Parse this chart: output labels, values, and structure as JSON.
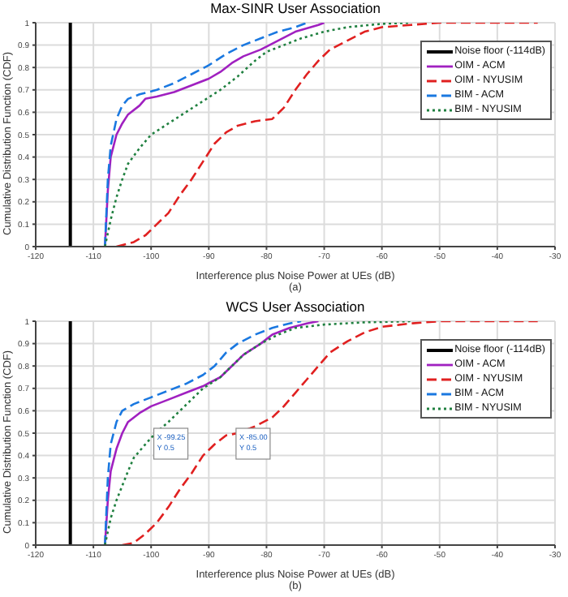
{
  "chart_data": [
    {
      "type": "line",
      "title": "Max-SINR User Association",
      "xlabel": "Interference plus Noise Power at UEs (dB)",
      "ylabel": "Cumulative Distribution Function (CDF)",
      "annotations": [
        "(a)"
      ],
      "xlim": [
        -120,
        -30
      ],
      "xticks": [
        -120,
        -110,
        -100,
        -90,
        -80,
        -70,
        -60,
        -50,
        -40,
        -30
      ],
      "ylim": [
        0,
        1
      ],
      "yticks": [
        0,
        0.1,
        0.2,
        0.3,
        0.4,
        0.5,
        0.6,
        0.7,
        0.8,
        0.9,
        1
      ],
      "grid": true,
      "legend": "top right",
      "series": [
        {
          "name": "Noise floor (-114dB)",
          "color": "#000000",
          "line_style": "solid",
          "x": [
            -114,
            -114
          ],
          "values": [
            0,
            1
          ]
        },
        {
          "name": "OIM - ACM",
          "color": "#a020c0",
          "line_style": "solid",
          "x": [
            -108,
            -107.5,
            -107,
            -106,
            -105,
            -104,
            -102,
            -101,
            -99,
            -96,
            -93,
            -90,
            -88,
            -86,
            -84,
            -81,
            -78,
            -75,
            -71,
            -70
          ],
          "values": [
            0,
            0.25,
            0.4,
            0.5,
            0.55,
            0.59,
            0.63,
            0.66,
            0.67,
            0.69,
            0.72,
            0.75,
            0.78,
            0.82,
            0.85,
            0.88,
            0.92,
            0.96,
            0.99,
            1
          ]
        },
        {
          "name": "OIM - NYUSIM",
          "color": "#e02020",
          "line_style": "dashed",
          "x": [
            -106,
            -103,
            -101,
            -99,
            -97,
            -95,
            -93,
            -91,
            -89,
            -87,
            -85,
            -82,
            -79,
            -77,
            -75,
            -73,
            -71,
            -69,
            -66,
            -63,
            -60,
            -55,
            -50,
            -33
          ],
          "values": [
            0,
            0.02,
            0.05,
            0.1,
            0.15,
            0.23,
            0.3,
            0.38,
            0.46,
            0.51,
            0.54,
            0.56,
            0.57,
            0.62,
            0.7,
            0.77,
            0.83,
            0.88,
            0.92,
            0.96,
            0.98,
            0.99,
            1,
            1
          ]
        },
        {
          "name": "BIM - ACM",
          "color": "#1a78e0",
          "line_style": "dashed",
          "x": [
            -108,
            -107.5,
            -107,
            -106,
            -105,
            -104,
            -102,
            -99,
            -96,
            -93,
            -90,
            -87,
            -84,
            -81,
            -78,
            -75,
            -73
          ],
          "values": [
            0,
            0.3,
            0.45,
            0.57,
            0.63,
            0.66,
            0.68,
            0.7,
            0.73,
            0.77,
            0.81,
            0.86,
            0.9,
            0.93,
            0.96,
            0.98,
            1
          ]
        },
        {
          "name": "BIM - NYUSIM",
          "color": "#208040",
          "line_style": "dotted",
          "x": [
            -108,
            -107,
            -106,
            -105,
            -104,
            -102,
            -100,
            -97,
            -94,
            -91,
            -88,
            -85,
            -82,
            -80,
            -77,
            -74,
            -70,
            -66,
            -60,
            -55
          ],
          "values": [
            0,
            0.12,
            0.22,
            0.3,
            0.37,
            0.44,
            0.5,
            0.55,
            0.6,
            0.65,
            0.7,
            0.76,
            0.83,
            0.87,
            0.9,
            0.93,
            0.96,
            0.98,
            0.995,
            1
          ]
        }
      ]
    },
    {
      "type": "line",
      "title": "WCS User Association",
      "xlabel": "Interference plus Noise Power at UEs (dB)",
      "ylabel": "Cumulative Distribution Function (CDF)",
      "annotations": [
        "(b)",
        {
          "text": "X -99.25\nY 0.5",
          "x": -99.25,
          "y": 0.5
        },
        {
          "text": "X -85.00\nY 0.5",
          "x": -85,
          "y": 0.5
        }
      ],
      "xlim": [
        -120,
        -30
      ],
      "xticks": [
        -120,
        -110,
        -100,
        -90,
        -80,
        -70,
        -60,
        -50,
        -40,
        -30
      ],
      "ylim": [
        0,
        1
      ],
      "yticks": [
        0,
        0.1,
        0.2,
        0.3,
        0.4,
        0.5,
        0.6,
        0.7,
        0.8,
        0.9,
        1
      ],
      "grid": true,
      "legend": "top right",
      "series": [
        {
          "name": "Noise floor (-114dB)",
          "color": "#000000",
          "line_style": "solid",
          "x": [
            -114,
            -114
          ],
          "values": [
            0,
            1
          ]
        },
        {
          "name": "OIM - ACM",
          "color": "#a020c0",
          "line_style": "solid",
          "x": [
            -108,
            -107.5,
            -107,
            -106,
            -105,
            -104,
            -102,
            -100,
            -97,
            -94,
            -91,
            -88,
            -86,
            -84,
            -81,
            -79,
            -76,
            -73,
            -71
          ],
          "values": [
            0,
            0.2,
            0.33,
            0.43,
            0.5,
            0.55,
            0.59,
            0.62,
            0.65,
            0.68,
            0.71,
            0.75,
            0.8,
            0.85,
            0.9,
            0.94,
            0.97,
            0.99,
            1
          ]
        },
        {
          "name": "OIM - NYUSIM",
          "color": "#e02020",
          "line_style": "dashed",
          "x": [
            -105,
            -103,
            -101,
            -99,
            -97,
            -95,
            -93,
            -91,
            -89,
            -87,
            -85,
            -82,
            -79,
            -77,
            -75,
            -73,
            -71,
            -69,
            -66,
            -63,
            -60,
            -55,
            -50,
            -33
          ],
          "values": [
            0,
            0.01,
            0.05,
            0.1,
            0.17,
            0.25,
            0.32,
            0.4,
            0.45,
            0.49,
            0.5,
            0.53,
            0.57,
            0.62,
            0.68,
            0.74,
            0.8,
            0.86,
            0.91,
            0.95,
            0.975,
            0.99,
            1,
            1
          ]
        },
        {
          "name": "BIM - ACM",
          "color": "#1a78e0",
          "line_style": "dashed",
          "x": [
            -108,
            -107.5,
            -107,
            -106,
            -105,
            -103,
            -100,
            -97,
            -94,
            -91,
            -89,
            -87,
            -85,
            -82,
            -79,
            -76,
            -74
          ],
          "values": [
            0,
            0.3,
            0.45,
            0.55,
            0.6,
            0.63,
            0.66,
            0.69,
            0.72,
            0.76,
            0.8,
            0.86,
            0.9,
            0.94,
            0.97,
            0.99,
            1
          ]
        },
        {
          "name": "BIM - NYUSIM",
          "color": "#208040",
          "line_style": "dotted",
          "x": [
            -108,
            -107,
            -106,
            -104,
            -103,
            -101,
            -99.25,
            -97,
            -95,
            -93,
            -91,
            -88,
            -86,
            -84,
            -81,
            -78,
            -75,
            -70,
            -63,
            -55
          ],
          "values": [
            0,
            0.12,
            0.2,
            0.33,
            0.39,
            0.45,
            0.5,
            0.55,
            0.6,
            0.65,
            0.7,
            0.75,
            0.8,
            0.85,
            0.9,
            0.94,
            0.97,
            0.985,
            0.995,
            1
          ]
        }
      ]
    }
  ]
}
